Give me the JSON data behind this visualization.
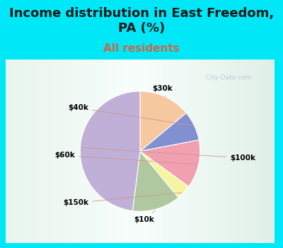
{
  "title": "Income distribution in East Freedom,\nPA (%)",
  "subtitle": "All residents",
  "labels": [
    "$30k",
    "$40k",
    "$60k",
    "$150k",
    "$10k",
    "$100k"
  ],
  "sizes": [
    14,
    8,
    13,
    4,
    13,
    48
  ],
  "colors": [
    "#f5c8a0",
    "#8090d0",
    "#f0a0b0",
    "#f5f5a0",
    "#b0c8a0",
    "#c0b0d8"
  ],
  "startangle": 90,
  "bg_color_cyan": "#00e8f8",
  "bg_color_chart_top": "#f0f8f8",
  "bg_color_chart_bottom": "#d0ead8",
  "title_fontsize": 13,
  "subtitle_fontsize": 11,
  "title_color": "#1a1a1a",
  "subtitle_color": "#cc6644",
  "watermark": "City-Data.com"
}
